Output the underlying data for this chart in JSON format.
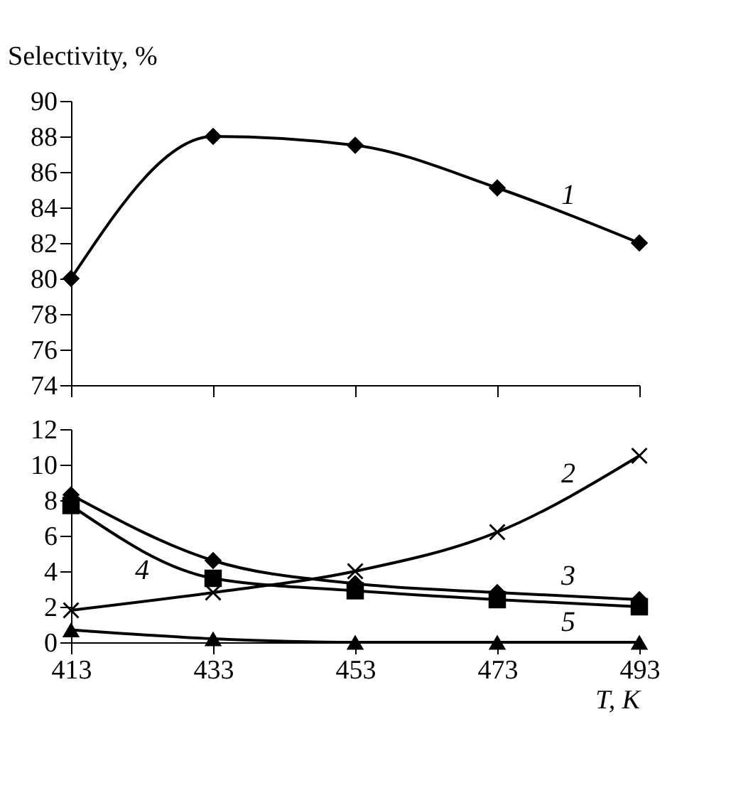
{
  "chart_data": [
    {
      "type": "line",
      "ylabel": "Selectivity, %",
      "x": [
        413,
        433,
        453,
        473,
        493
      ],
      "xlim": [
        413,
        493
      ],
      "xticks": [
        413,
        433,
        453,
        473,
        493
      ],
      "ylim": [
        74,
        90
      ],
      "yticks": [
        74,
        76,
        78,
        80,
        82,
        84,
        86,
        88,
        90
      ],
      "tick_labels": "y",
      "grid": false,
      "legend": false,
      "series": [
        {
          "name": "1",
          "color": "#000000",
          "marker": "diamond",
          "values": [
            80,
            88,
            87.5,
            85.1,
            82
          ]
        }
      ]
    },
    {
      "type": "line",
      "xlabel": "T, K",
      "x": [
        413,
        433,
        453,
        473,
        493
      ],
      "xlim": [
        413,
        493
      ],
      "xticks": [
        413,
        433,
        453,
        473,
        493
      ],
      "ylim": [
        0,
        12
      ],
      "yticks": [
        0,
        2,
        4,
        6,
        8,
        10,
        12
      ],
      "grid": false,
      "legend": false,
      "series": [
        {
          "name": "2",
          "color": "#000000",
          "marker": "cross",
          "values": [
            1.8,
            2.8,
            4.0,
            6.2,
            10.5
          ]
        },
        {
          "name": "3",
          "color": "#000000",
          "marker": "diamond",
          "values": [
            8.3,
            4.6,
            3.3,
            2.8,
            2.4
          ]
        },
        {
          "name": "4",
          "color": "#000000",
          "marker": "square",
          "values": [
            7.7,
            3.6,
            2.9,
            2.4,
            2.0
          ]
        },
        {
          "name": "5",
          "color": "#000000",
          "marker": "triangle",
          "values": [
            0.7,
            0.2,
            0.0,
            0.0,
            0.0
          ]
        }
      ]
    }
  ]
}
